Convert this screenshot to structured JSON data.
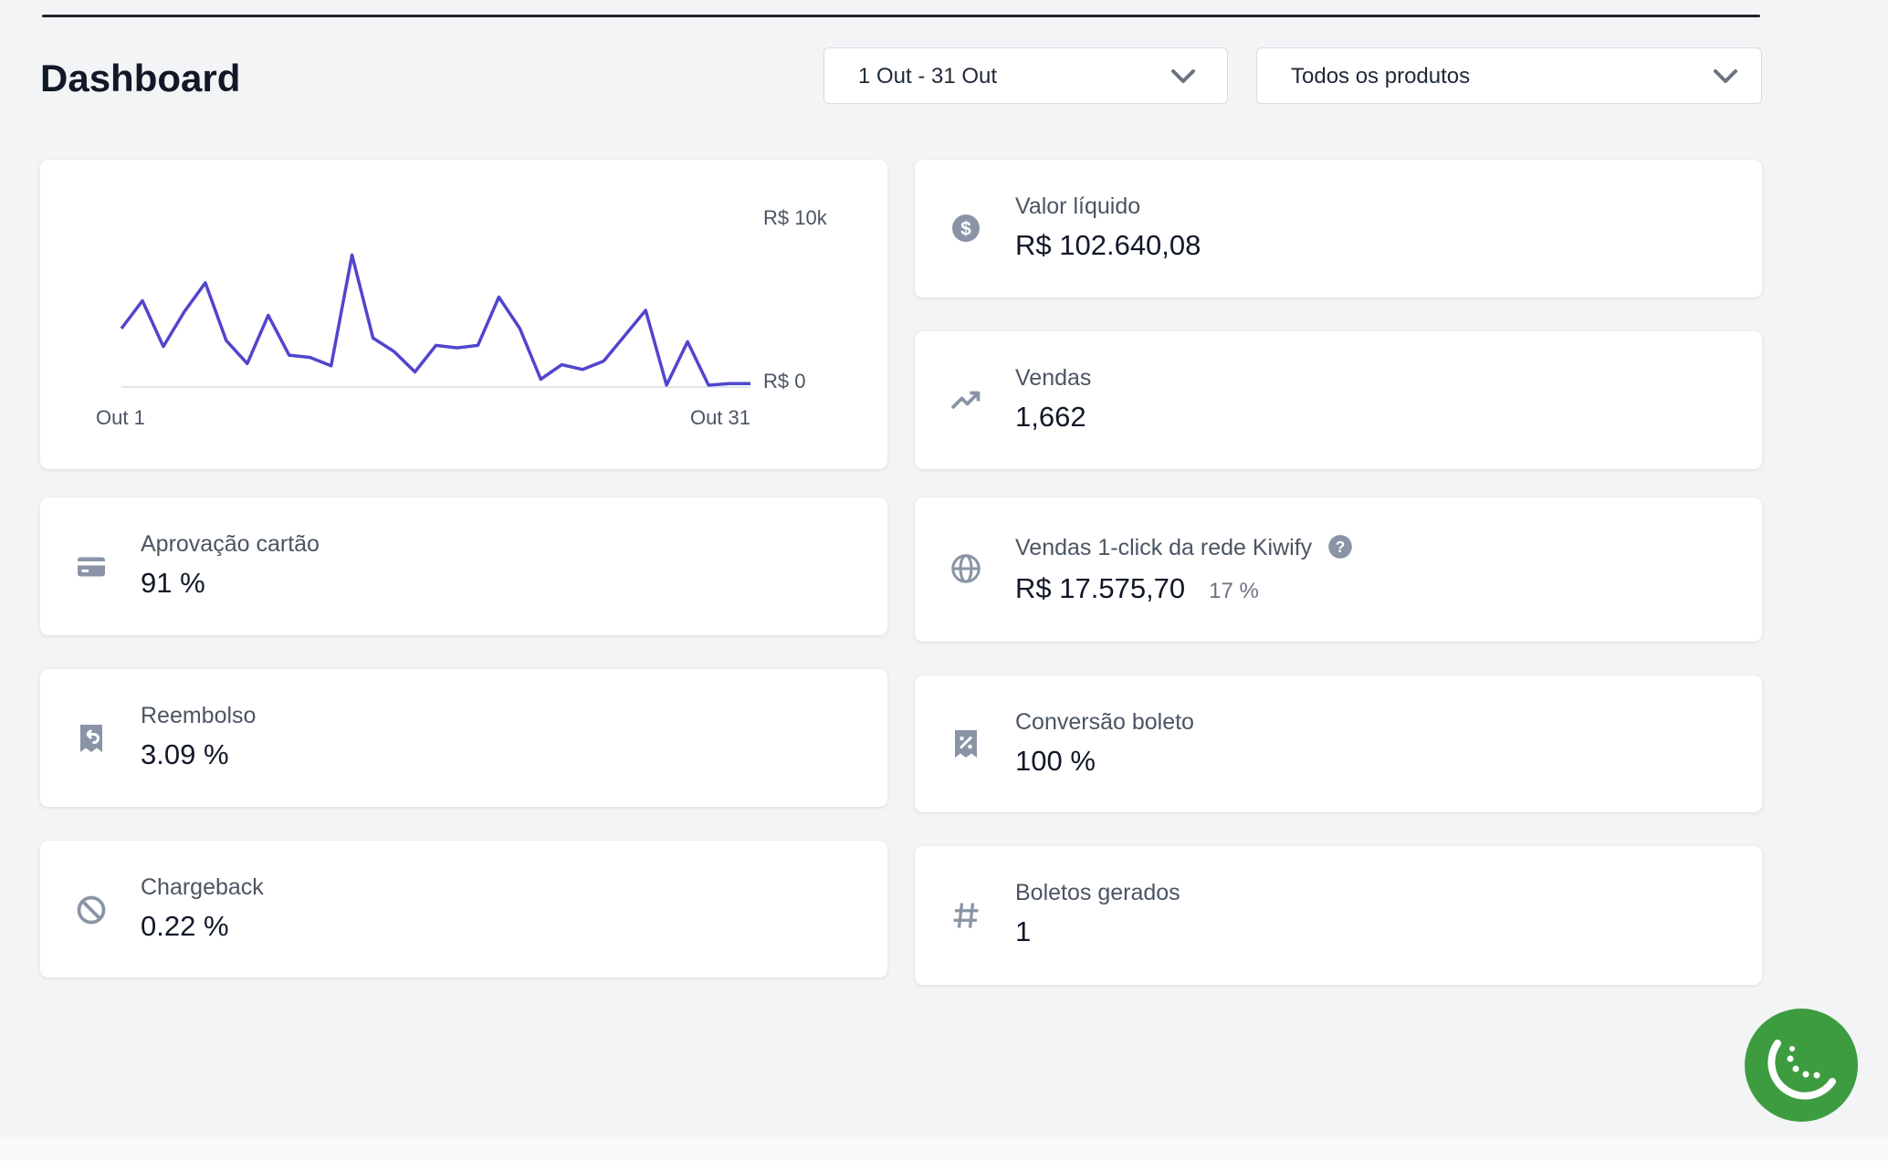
{
  "header": {
    "title": "Dashboard"
  },
  "filters": [
    "1 Out - 31 Out",
    "Todos os produtos"
  ],
  "chart_data": {
    "type": "line",
    "categories": [
      "Out 1",
      null,
      null,
      null,
      null,
      null,
      null,
      null,
      null,
      null,
      null,
      null,
      null,
      null,
      null,
      null,
      null,
      null,
      null,
      null,
      null,
      null,
      null,
      null,
      null,
      null,
      null,
      null,
      null,
      null,
      "Out 31"
    ],
    "values": [
      3430,
      5110,
      2340,
      4450,
      6200,
      2700,
      1310,
      4230,
      1820,
      1680,
      1170,
      7880,
      2850,
      2040,
      800,
      2410,
      2260,
      2410,
      5330,
      3430,
      360,
      1240,
      950,
      1460,
      2990,
      4530,
      0,
      2630,
      0,
      100,
      100
    ],
    "color": "#5145cd",
    "ylim": [
      0,
      10000
    ],
    "yticks": [
      {
        "value": 0,
        "label": "R$ 0"
      },
      {
        "value": 10000,
        "label": "R$ 10k"
      }
    ]
  },
  "metrics": {
    "valor_liquido": {
      "label": "Valor líquido",
      "value": "R$ 102.640,08"
    },
    "vendas": {
      "label": "Vendas",
      "value": "1,662"
    },
    "aprovacao": {
      "label": "Aprovação cartão",
      "value": "91 %"
    },
    "kiwify": {
      "label": "Vendas 1-click da rede Kiwify",
      "value": "R$ 17.575,70",
      "share": "17 %"
    },
    "reembolso": {
      "label": "Reembolso",
      "value": "3.09 %"
    },
    "conversao": {
      "label": "Conversão boleto",
      "value": "100 %"
    },
    "chargeback": {
      "label": "Chargeback",
      "value": "0.22 %"
    },
    "boletos": {
      "label": "Boletos gerados",
      "value": "1"
    }
  }
}
